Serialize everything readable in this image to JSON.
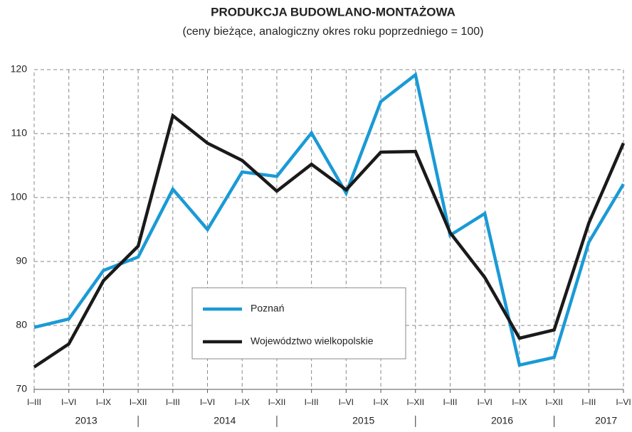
{
  "chart_data": {
    "type": "line",
    "title": "PRODUKCJA  BUDOWLANO-MONTAŻOWA",
    "subtitle": "(ceny bieżące, analogiczny okres roku poprzedniego = 100)",
    "categories": [
      "I–III",
      "I–VI",
      "I–IX",
      "I–XII",
      "I–III",
      "I–VI",
      "I–IX",
      "I–XII",
      "I–III",
      "I–VI",
      "I–IX",
      "I–XII",
      "I–III",
      "I–VI",
      "I–IX",
      "I–XII",
      "I–III",
      "I–VI"
    ],
    "years": [
      "2013",
      "2014",
      "2015",
      "2016",
      "2017"
    ],
    "series": [
      {
        "name": "Poznań",
        "color": "#1a9ad6",
        "values": [
          79.7,
          81.0,
          88.6,
          90.7,
          101.3,
          95.0,
          104.0,
          103.3,
          110.1,
          100.7,
          115.0,
          119.2,
          94.1,
          97.5,
          73.8,
          75.0,
          93.0,
          102.1
        ]
      },
      {
        "name": "Województwo wielkopolskie",
        "color": "#1a1a1a",
        "values": [
          73.5,
          77.1,
          87.0,
          92.4,
          112.8,
          108.5,
          105.8,
          101.0,
          105.2,
          101.2,
          107.1,
          107.2,
          94.5,
          87.5,
          78.0,
          79.3,
          96.0,
          108.5
        ]
      }
    ],
    "ylim": [
      70,
      120
    ],
    "yticks": [
      70,
      80,
      90,
      100,
      110,
      120
    ],
    "grid": true
  }
}
